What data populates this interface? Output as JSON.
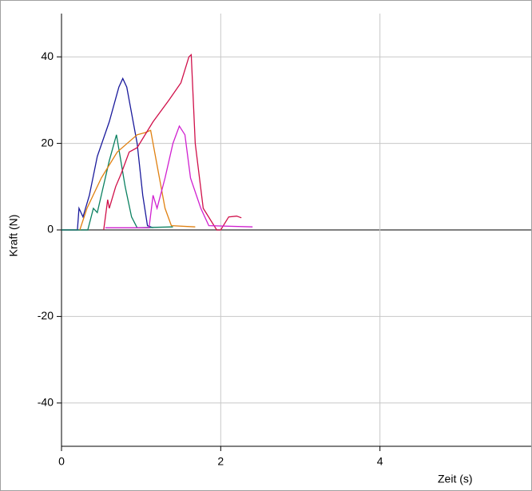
{
  "chart_data": {
    "type": "line",
    "xlabel": "Zeit (s)",
    "ylabel": "Kraft (N)",
    "xlim": [
      0,
      5.9
    ],
    "ylim": [
      -50,
      50
    ],
    "xticks": [
      0,
      2,
      4
    ],
    "yticks": [
      -40,
      -20,
      0,
      20,
      40
    ],
    "grid": true,
    "series": [
      {
        "color": "#1a1a9c",
        "x": [
          0,
          0.2,
          0.22,
          0.27,
          0.35,
          0.45,
          0.6,
          0.72,
          0.77,
          0.82,
          0.95,
          1.02,
          1.08,
          1.15
        ],
        "values": [
          0,
          0,
          5,
          3,
          8,
          17,
          25,
          33,
          35,
          33,
          20,
          8,
          1,
          0.5
        ]
      },
      {
        "color": "#0a8060",
        "x": [
          0,
          0.33,
          0.4,
          0.45,
          0.55,
          0.6,
          0.69,
          0.8,
          0.88,
          0.95,
          1.4
        ],
        "values": [
          0,
          0,
          5,
          4,
          12,
          16,
          22,
          10,
          3,
          0.5,
          0.7
        ]
      },
      {
        "color": "#e08010",
        "x": [
          0.23,
          0.32,
          0.5,
          0.7,
          0.95,
          1.05,
          1.12,
          1.2,
          1.3,
          1.38,
          1.68
        ],
        "values": [
          0,
          5,
          12,
          18,
          22,
          22.5,
          23,
          15,
          5,
          1,
          0.7
        ]
      },
      {
        "color": "#d0104a",
        "x": [
          0.53,
          0.58,
          0.6,
          0.68,
          0.75,
          0.85,
          0.95,
          1.15,
          1.35,
          1.5,
          1.6,
          1.63,
          1.68,
          1.78,
          1.95,
          2.0,
          2.1,
          2.2,
          2.26
        ],
        "values": [
          0,
          7,
          5,
          10,
          13,
          18,
          19,
          25,
          30,
          34,
          40,
          40.5,
          20,
          5,
          0,
          0,
          3,
          3.2,
          2.8
        ]
      },
      {
        "color": "#d020d0",
        "x": [
          0.55,
          1.1,
          1.15,
          1.2,
          1.3,
          1.4,
          1.48,
          1.55,
          1.62,
          1.75,
          1.85,
          2.4
        ],
        "values": [
          0.5,
          0.5,
          8,
          5,
          12,
          20,
          24,
          22,
          12,
          5,
          1,
          0.7
        ]
      }
    ]
  }
}
